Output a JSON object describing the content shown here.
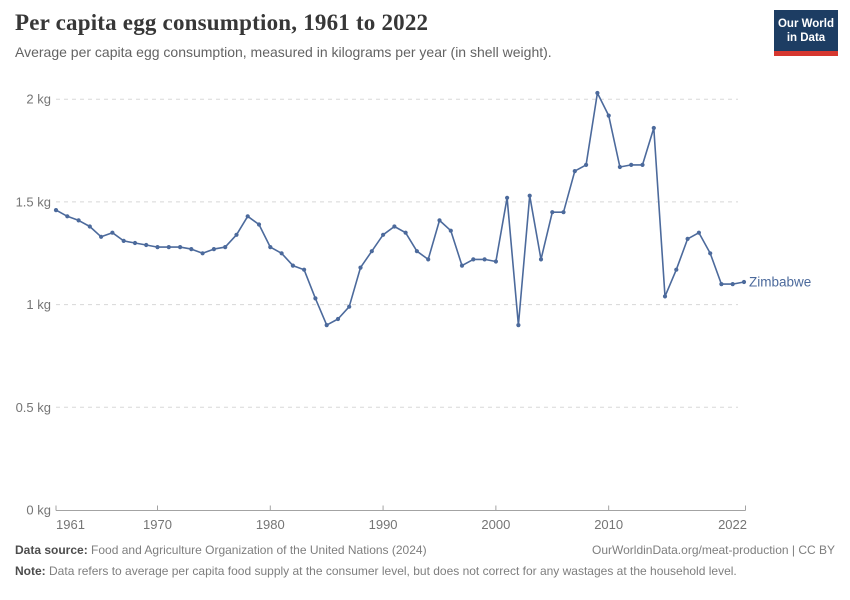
{
  "header": {
    "title": "Per capita egg consumption, 1961 to 2022",
    "subtitle": "Average per capita egg consumption, measured in kilograms per year (in shell weight)."
  },
  "logo": {
    "line1": "Our World",
    "line2": "in Data"
  },
  "chart_data": {
    "type": "line",
    "title": "Per capita egg consumption, 1961 to 2022",
    "unit": "kg",
    "series_label": "Zimbabwe",
    "line_color": "#4C6A9C",
    "x": [
      1961,
      1962,
      1963,
      1964,
      1965,
      1966,
      1967,
      1968,
      1969,
      1970,
      1971,
      1972,
      1973,
      1974,
      1975,
      1976,
      1977,
      1978,
      1979,
      1980,
      1981,
      1982,
      1983,
      1984,
      1985,
      1986,
      1987,
      1988,
      1989,
      1990,
      1991,
      1992,
      1993,
      1994,
      1995,
      1996,
      1997,
      1998,
      1999,
      2000,
      2001,
      2002,
      2003,
      2004,
      2005,
      2006,
      2007,
      2008,
      2009,
      2010,
      2011,
      2012,
      2013,
      2014,
      2015,
      2016,
      2017,
      2018,
      2019,
      2020,
      2021,
      2022
    ],
    "values": [
      1.46,
      1.43,
      1.41,
      1.38,
      1.33,
      1.35,
      1.31,
      1.3,
      1.29,
      1.28,
      1.28,
      1.28,
      1.27,
      1.25,
      1.27,
      1.28,
      1.34,
      1.43,
      1.39,
      1.28,
      1.25,
      1.19,
      1.17,
      1.03,
      0.9,
      0.93,
      0.99,
      1.18,
      1.26,
      1.34,
      1.38,
      1.35,
      1.26,
      1.22,
      1.41,
      1.36,
      1.19,
      1.22,
      1.22,
      1.21,
      1.52,
      0.9,
      1.53,
      1.22,
      1.45,
      1.45,
      1.65,
      1.68,
      2.03,
      1.92,
      1.67,
      1.68,
      1.68,
      1.86,
      1.04,
      1.17,
      1.32,
      1.35,
      1.25,
      1.1,
      1.1,
      1.11
    ],
    "x_ticks": [
      1961,
      1970,
      1980,
      1990,
      2000,
      2010,
      2022
    ],
    "y_ticks": [
      {
        "value": 0,
        "label": "0 kg"
      },
      {
        "value": 0.5,
        "label": "0.5 kg"
      },
      {
        "value": 1,
        "label": "1 kg"
      },
      {
        "value": 1.5,
        "label": "1.5 kg"
      },
      {
        "value": 2,
        "label": "2 kg"
      }
    ],
    "ylim": [
      0,
      2.1
    ],
    "xlabel": "",
    "ylabel": "",
    "grid": "horizontal-dashed",
    "legend_position": "end-of-line"
  },
  "footer": {
    "source_label": "Data source:",
    "source_text": "Food and Agriculture Organization of the United Nations (2024)",
    "citation": "OurWorldinData.org/meat-production | CC BY",
    "note_label": "Note:",
    "note_text": "Data refers to average per capita food supply at the consumer level, but does not correct for any wastages at the household level."
  },
  "colors": {
    "line": "#4C6A9C",
    "grid": "#d8d8d8",
    "axis": "#a3a3a3",
    "tick_label": "#757575",
    "logo_navy": "#1d3d63",
    "logo_red": "#d6372f"
  }
}
